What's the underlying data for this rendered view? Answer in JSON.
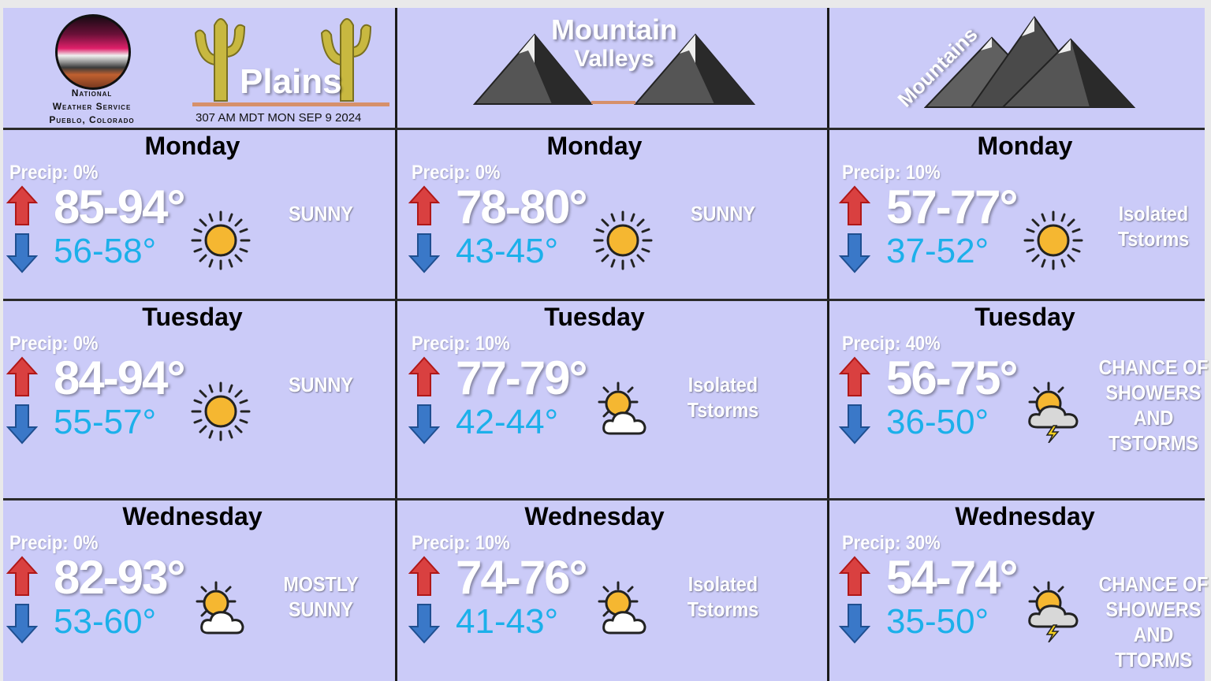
{
  "header": {
    "office": [
      "National",
      "Weather Service",
      "Pueblo, Colorado"
    ],
    "issued": "307 AM MDT MON SEP 9 2024",
    "zones": [
      {
        "title": "Plains"
      },
      {
        "title_line1": "Mountain",
        "title_line2": "Valleys"
      },
      {
        "title": "Mountains"
      }
    ]
  },
  "colors": {
    "background": "#cbcbf8",
    "high_temp": "#ffffff",
    "low_temp": "#1cb0ea",
    "up_arrow": "#d94040",
    "down_arrow": "#3a78c8"
  },
  "forecast": [
    [
      {
        "day": "Monday",
        "precip": "Precip: 0%",
        "high": "85-94°",
        "low": "56-58°",
        "icon": "sun-icon",
        "condition": "SUNNY"
      },
      {
        "day": "Tuesday",
        "precip": "Precip: 0%",
        "high": "84-94°",
        "low": "55-57°",
        "icon": "sun-icon",
        "condition": "SUNNY"
      },
      {
        "day": "Wednesday",
        "precip": "Precip: 0%",
        "high": "82-93°",
        "low": "53-60°",
        "icon": "partly-cloudy-icon",
        "condition": "MOSTLY SUNNY"
      }
    ],
    [
      {
        "day": "Monday",
        "precip": "Precip: 0%",
        "high": "78-80°",
        "low": "43-45°",
        "icon": "sun-icon",
        "condition": "SUNNY"
      },
      {
        "day": "Tuesday",
        "precip": "Precip: 10%",
        "high": "77-79°",
        "low": "42-44°",
        "icon": "partly-cloudy-icon",
        "condition": "Isolated Tstorms"
      },
      {
        "day": "Wednesday",
        "precip": "Precip: 10%",
        "high": "74-76°",
        "low": "41-43°",
        "icon": "partly-cloudy-icon",
        "condition": "Isolated Tstorms"
      }
    ],
    [
      {
        "day": "Monday",
        "precip": "Precip: 10%",
        "high": "57-77°",
        "low": "37-52°",
        "icon": "sun-icon",
        "condition": "Isolated Tstorms"
      },
      {
        "day": "Tuesday",
        "precip": "Precip: 40%",
        "high": "56-75°",
        "low": "36-50°",
        "icon": "thunderstorm-icon",
        "condition": "CHANCE OF SHOWERS AND TSTORMS"
      },
      {
        "day": "Wednesday",
        "precip": "Precip: 30%",
        "high": "54-74°",
        "low": "35-50°",
        "icon": "thunderstorm-icon",
        "condition": "CHANCE OF SHOWERS AND TTORMS"
      }
    ]
  ]
}
